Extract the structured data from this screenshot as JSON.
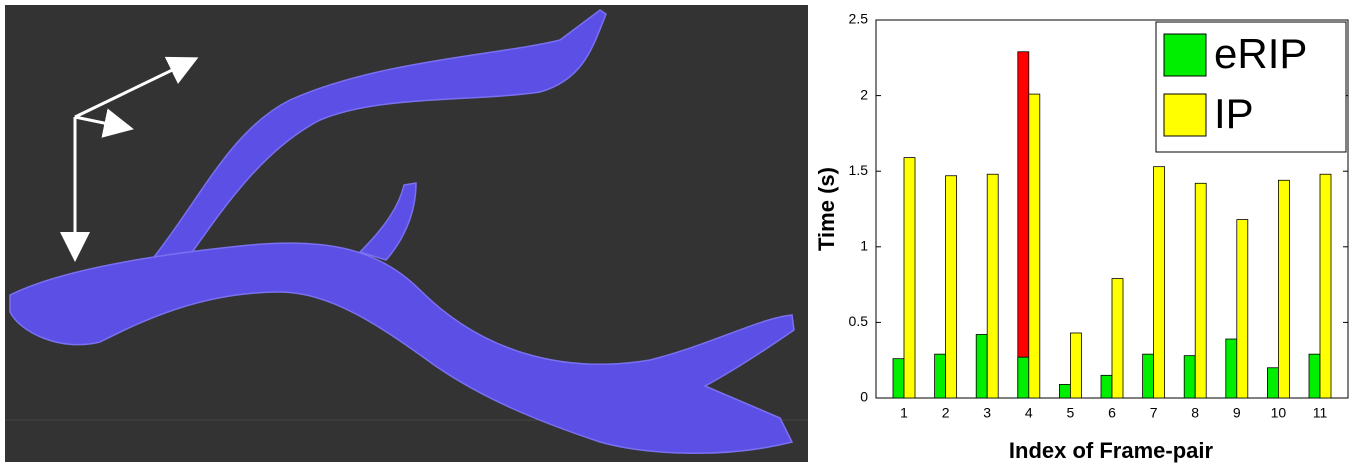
{
  "chart_data": {
    "type": "bar",
    "xlabel": "Index of Frame-pair",
    "ylabel": "Time (s)",
    "categories": [
      "1",
      "2",
      "3",
      "4",
      "5",
      "6",
      "7",
      "8",
      "9",
      "10",
      "11"
    ],
    "series": [
      {
        "name": "eRIP",
        "color": "#00ee00",
        "values": [
          0.26,
          0.29,
          0.42,
          0.27,
          0.09,
          0.15,
          0.29,
          0.28,
          0.39,
          0.2,
          0.29
        ]
      },
      {
        "name": "IP",
        "color": "#ffff00",
        "values": [
          1.59,
          1.47,
          1.48,
          2.01,
          0.43,
          0.79,
          1.53,
          1.42,
          1.18,
          1.44,
          1.48
        ]
      },
      {
        "color": "#ff0000",
        "values": [
          null,
          null,
          null,
          2.29,
          null,
          null,
          null,
          null,
          null,
          null,
          null
        ]
      }
    ],
    "ylim": [
      0,
      2.5
    ],
    "yticks": [
      0,
      0.5,
      1,
      1.5,
      2,
      2.5
    ],
    "legend": "upper right"
  }
}
